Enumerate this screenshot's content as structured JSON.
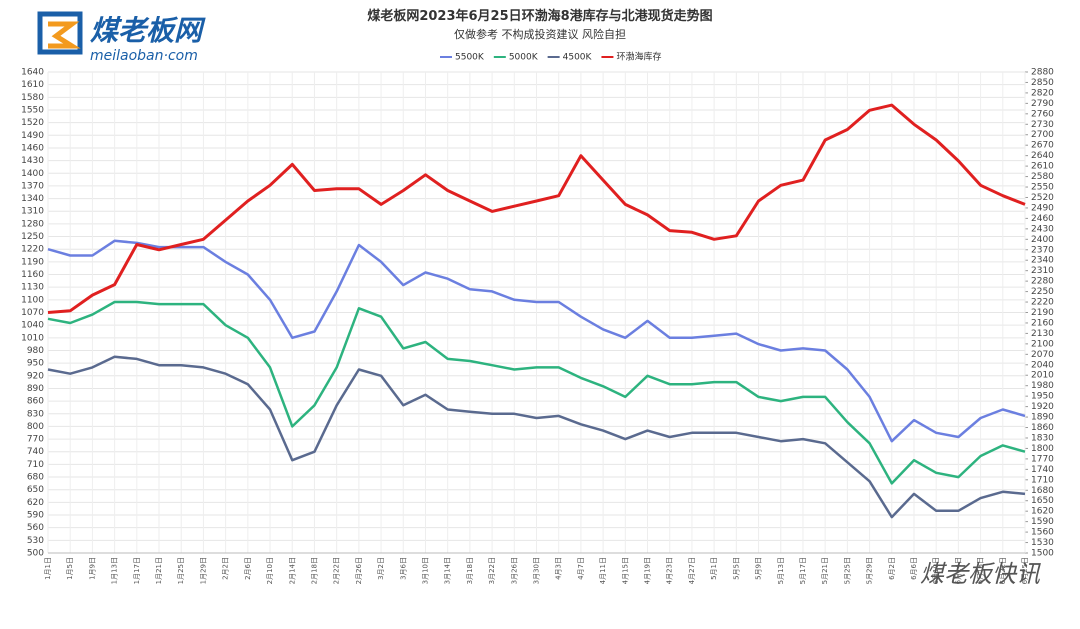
{
  "logo": {
    "name": "煤老板网",
    "site": "meilaoban·com"
  },
  "watermark": "煤老板快讯",
  "chart_data": {
    "type": "line",
    "title": "煤老板网2023年6月25日环渤海8港库存与北港现货走势图",
    "subtitle": "仅做参考 不构成投资建议 风险自担",
    "categories": [
      "1月1日",
      "1月5日",
      "1月9日",
      "1月13日",
      "1月17日",
      "1月21日",
      "1月25日",
      "1月29日",
      "2月2日",
      "2月6日",
      "2月10日",
      "2月14日",
      "2月18日",
      "2月22日",
      "2月26日",
      "3月2日",
      "3月6日",
      "3月10日",
      "3月14日",
      "3月18日",
      "3月22日",
      "3月26日",
      "3月30日",
      "4月3日",
      "4月7日",
      "4月11日",
      "4月15日",
      "4月19日",
      "4月23日",
      "4月27日",
      "5月1日",
      "5月5日",
      "5月9日",
      "5月13日",
      "5月17日",
      "5月21日",
      "5月25日",
      "5月29日",
      "6月2日",
      "6月6日",
      "6月10日",
      "6月14日",
      "6月18日",
      "6月22日",
      "6月25日"
    ],
    "series": [
      {
        "name": "5500K",
        "color": "#6b7fe0",
        "values": [
          1220,
          1205,
          1205,
          1240,
          1235,
          1225,
          1225,
          1225,
          1190,
          1160,
          1100,
          1010,
          1025,
          1120,
          1230,
          1190,
          1135,
          1165,
          1150,
          1125,
          1120,
          1100,
          1095,
          1095,
          1060,
          1030,
          1010,
          1050,
          1010,
          1010,
          1015,
          1020,
          995,
          980,
          985,
          980,
          935,
          870,
          765,
          815,
          785,
          775,
          820,
          840,
          825
        ]
      },
      {
        "name": "5000K",
        "color": "#2db37f",
        "values": [
          1055,
          1045,
          1065,
          1095,
          1095,
          1090,
          1090,
          1090,
          1040,
          1010,
          940,
          800,
          850,
          940,
          1080,
          1060,
          985,
          1000,
          960,
          955,
          945,
          935,
          940,
          940,
          915,
          895,
          870,
          920,
          900,
          900,
          905,
          905,
          870,
          860,
          870,
          870,
          810,
          760,
          665,
          720,
          690,
          680,
          730,
          755,
          740
        ]
      },
      {
        "name": "4500K",
        "color": "#5a6a8f",
        "values": [
          935,
          925,
          940,
          965,
          960,
          945,
          945,
          940,
          925,
          900,
          840,
          720,
          740,
          850,
          935,
          920,
          850,
          875,
          840,
          835,
          830,
          830,
          820,
          825,
          805,
          790,
          770,
          790,
          775,
          785,
          785,
          785,
          775,
          765,
          770,
          760,
          715,
          670,
          585,
          640,
          600,
          600,
          630,
          645,
          640
        ]
      },
      {
        "name": "环渤海库存",
        "color": "#e02020",
        "axis": "y2",
        "values": [
          2190,
          2195,
          2240,
          2270,
          2385,
          2370,
          2385,
          2400,
          2455,
          2510,
          2555,
          2615,
          2540,
          2545,
          2545,
          2500,
          2540,
          2585,
          2540,
          2510,
          2480,
          2495,
          2510,
          2525,
          2640,
          2570,
          2500,
          2470,
          2425,
          2420,
          2400,
          2410,
          2510,
          2555,
          2570,
          2685,
          2715,
          2770,
          2785,
          2730,
          2685,
          2625,
          2555,
          2525,
          2500
        ]
      }
    ],
    "ylim": [
      500,
      1640
    ],
    "yticks": [
      500,
      530,
      560,
      590,
      620,
      650,
      680,
      710,
      740,
      770,
      800,
      830,
      860,
      890,
      920,
      950,
      980,
      1010,
      1040,
      1070,
      1100,
      1130,
      1160,
      1190,
      1220,
      1250,
      1280,
      1310,
      1340,
      1370,
      1400,
      1430,
      1460,
      1490,
      1520,
      1550,
      1580,
      1610,
      1640
    ],
    "y2lim": [
      1500,
      2880
    ],
    "y2ticks": [
      1500,
      1530,
      1560,
      1590,
      1620,
      1650,
      1680,
      1710,
      1740,
      1770,
      1800,
      1830,
      1860,
      1890,
      1920,
      1950,
      1980,
      2010,
      2040,
      2070,
      2100,
      2130,
      2160,
      2190,
      2220,
      2250,
      2280,
      2310,
      2340,
      2370,
      2400,
      2430,
      2460,
      2490,
      2520,
      2550,
      2580,
      2610,
      2640,
      2670,
      2700,
      2730,
      2760,
      2790,
      2820,
      2850,
      2880
    ],
    "grid": true,
    "legend": "top"
  }
}
